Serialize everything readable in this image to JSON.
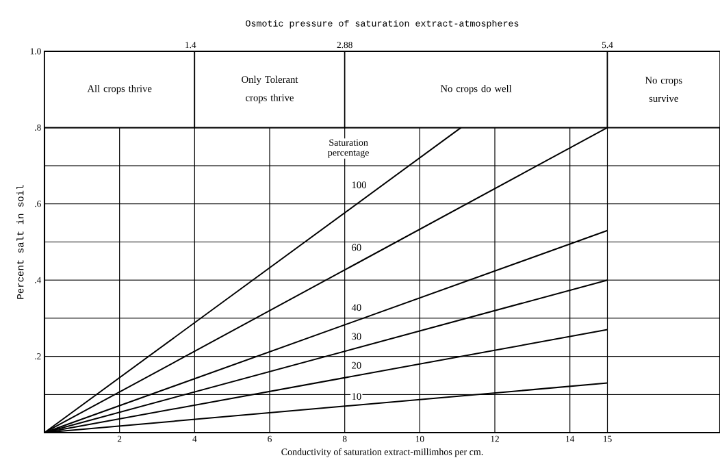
{
  "chart_data": {
    "type": "line",
    "xlabel": "Conductivity of saturation extract-millimhos per cm.",
    "ylabel": "Percent salt in soil",
    "x2label": "Osmotic pressure of saturation extract-atmospheres",
    "xlim": [
      0,
      18
    ],
    "ylim": [
      0,
      1.0
    ],
    "xticks": [
      2,
      4,
      6,
      8,
      10,
      12,
      14,
      15
    ],
    "yticks": [
      {
        "value": 0.1,
        "label": null
      },
      {
        "value": 0.2,
        "label": ".2"
      },
      {
        "value": 0.3,
        "label": null
      },
      {
        "value": 0.4,
        "label": ".4"
      },
      {
        "value": 0.5,
        "label": null
      },
      {
        "value": 0.6,
        "label": ".6"
      },
      {
        "value": 0.7,
        "label": null
      },
      {
        "value": 0.8,
        "label": ".8"
      },
      {
        "value": 1.0,
        "label": "1.0"
      }
    ],
    "x2lim": [
      0,
      6.48
    ],
    "x2ticks": [
      1.4,
      2.88,
      5.4
    ],
    "grid": true,
    "series": [
      {
        "name": "100",
        "color": "#000000",
        "x": [
          0,
          11.1
        ],
        "values": [
          0,
          0.8
        ]
      },
      {
        "name": "60",
        "color": "#000000",
        "x": [
          0,
          15
        ],
        "values": [
          0,
          0.8
        ]
      },
      {
        "name": "40",
        "color": "#000000",
        "x": [
          0,
          15
        ],
        "values": [
          0,
          0.53
        ]
      },
      {
        "name": "30",
        "color": "#000000",
        "x": [
          0,
          15
        ],
        "values": [
          0,
          0.4
        ]
      },
      {
        "name": "20",
        "color": "#000000",
        "x": [
          0,
          15
        ],
        "values": [
          0,
          0.27
        ]
      },
      {
        "name": "10",
        "color": "#000000",
        "x": [
          0,
          15
        ],
        "values": [
          0,
          0.13
        ]
      }
    ],
    "ref_lines": [
      {
        "axis": "y",
        "value": 0.8
      }
    ],
    "bands": [
      {
        "axis": "x",
        "from": 0,
        "to": 4,
        "label": "All crops thrive"
      },
      {
        "axis": "x",
        "from": 4,
        "to": 8,
        "label": "Only Tolerant crops thrive"
      },
      {
        "axis": "x",
        "from": 8,
        "to": 15,
        "label": "No crops do well"
      },
      {
        "axis": "x",
        "from": 15,
        "to": 18,
        "label": "No crops survive"
      }
    ],
    "annotations": [
      "Saturation percentage"
    ]
  }
}
